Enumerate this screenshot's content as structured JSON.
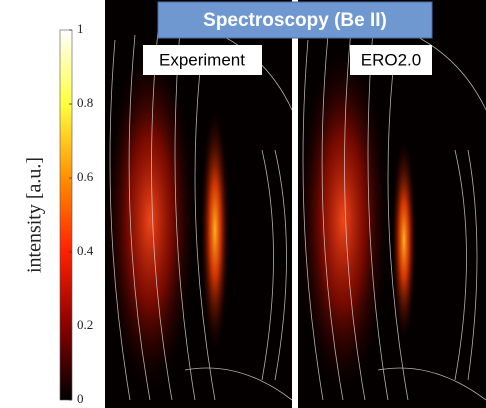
{
  "chart_data": {
    "type": "heatmap",
    "title": "Spectroscopy (Be II)",
    "panels": [
      "Experiment",
      "ERO2.0"
    ],
    "colorbar": {
      "label": "intensity [a.u.]",
      "lim": [
        0,
        1
      ],
      "ticks": [
        0,
        0.2,
        0.4,
        0.6,
        0.8,
        1
      ],
      "colors": [
        "#000000",
        "#8b0000",
        "#ff2000",
        "#ff9000",
        "#ffff40",
        "#ffffff"
      ]
    }
  }
}
